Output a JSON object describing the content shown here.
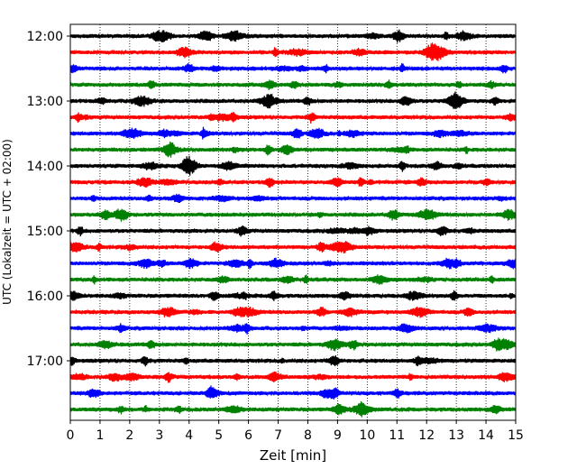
{
  "chart_data": {
    "type": "line",
    "xlabel": "Zeit  [min]",
    "ylabel": "UTC (Lokalzeit = UTC + 02:00)",
    "xlim": [
      0,
      15
    ],
    "x_ticks": [
      "0",
      "1",
      "2",
      "3",
      "4",
      "5",
      "6",
      "7",
      "8",
      "9",
      "10",
      "11",
      "12",
      "13",
      "14",
      "15"
    ],
    "y_ticks": [
      "12:00",
      "13:00",
      "14:00",
      "15:00",
      "16:00",
      "17:00"
    ],
    "grid": "vertical dotted",
    "trace_interval_minutes": 15,
    "trace_colors": [
      "#000000",
      "#ff0000",
      "#0000ff",
      "#008000"
    ],
    "rows": [
      {
        "start": "12:00",
        "color": "#000000"
      },
      {
        "start": "12:15",
        "color": "#ff0000"
      },
      {
        "start": "12:30",
        "color": "#0000ff"
      },
      {
        "start": "12:45",
        "color": "#008000"
      },
      {
        "start": "13:00",
        "color": "#000000"
      },
      {
        "start": "13:15",
        "color": "#ff0000"
      },
      {
        "start": "13:30",
        "color": "#0000ff"
      },
      {
        "start": "13:45",
        "color": "#008000"
      },
      {
        "start": "14:00",
        "color": "#000000"
      },
      {
        "start": "14:15",
        "color": "#ff0000"
      },
      {
        "start": "14:30",
        "color": "#0000ff"
      },
      {
        "start": "14:45",
        "color": "#008000"
      },
      {
        "start": "15:00",
        "color": "#000000"
      },
      {
        "start": "15:15",
        "color": "#ff0000"
      },
      {
        "start": "15:30",
        "color": "#0000ff"
      },
      {
        "start": "15:45",
        "color": "#008000"
      },
      {
        "start": "16:00",
        "color": "#000000"
      },
      {
        "start": "16:15",
        "color": "#ff0000"
      },
      {
        "start": "16:30",
        "color": "#0000ff"
      },
      {
        "start": "16:45",
        "color": "#008000"
      },
      {
        "start": "17:00",
        "color": "#000000"
      },
      {
        "start": "17:15",
        "color": "#ff0000"
      },
      {
        "start": "17:30",
        "color": "#0000ff"
      },
      {
        "start": "17:45",
        "color": "#008000"
      }
    ]
  }
}
